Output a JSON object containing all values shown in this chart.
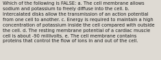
{
  "text": "Which of the following is FALSE: a. The cell membrane allows\nsodium and potassium to freely diffuse into the cell. b.\nIntercalated disks allow the transmission of an action potential\nfrom one cell to another. c. Energy is required to maintain a high\nconcentration of potassium inside the cell compared with outside\nthe cell. d. The resting membrane potential of a cardiac muscle\ncell is about -90 millivolts. e. The cell membrane contains\nproteins that control the flow of ions in and out of the cell.",
  "background_color": "#dedad3",
  "text_color": "#1a1a1a",
  "font_size": 4.85,
  "figsize": [
    2.35,
    0.88
  ],
  "dpi": 100,
  "linespacing": 1.38
}
